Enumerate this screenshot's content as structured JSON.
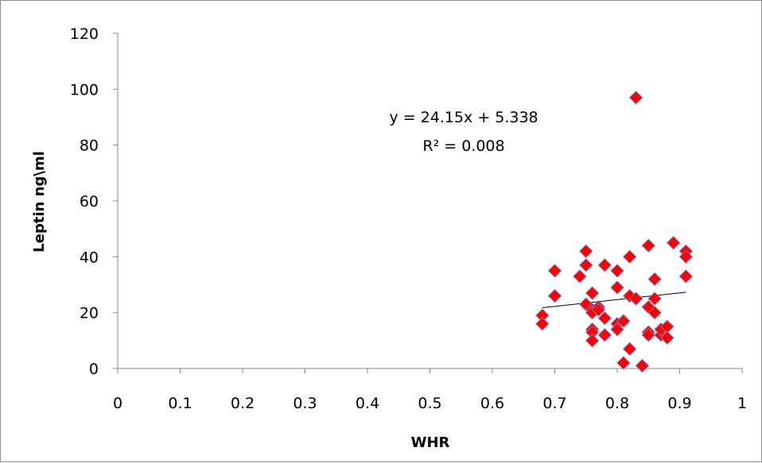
{
  "chart_data": {
    "type": "scatter",
    "xlabel": "WHR",
    "ylabel": "Leptin ng\\ml",
    "xlim": [
      0,
      1
    ],
    "ylim": [
      0,
      120
    ],
    "xticks": [
      "0",
      "0.1",
      "0.2",
      "0.3",
      "0.4",
      "0.5",
      "0.6",
      "0.7",
      "0.8",
      "0.9",
      "1"
    ],
    "yticks": [
      "0",
      "20",
      "40",
      "60",
      "80",
      "100",
      "120"
    ],
    "grid": false,
    "legend": "none",
    "marker": "diamond",
    "marker_color": "#ff0000",
    "marker_edge_color": "#7a7ab8",
    "series": [
      {
        "points": [
          [
            0.68,
            19
          ],
          [
            0.68,
            16
          ],
          [
            0.7,
            35
          ],
          [
            0.7,
            26
          ],
          [
            0.74,
            33
          ],
          [
            0.75,
            42
          ],
          [
            0.75,
            37
          ],
          [
            0.75,
            23
          ],
          [
            0.76,
            27
          ],
          [
            0.76,
            21
          ],
          [
            0.76,
            20
          ],
          [
            0.76,
            14
          ],
          [
            0.76,
            13
          ],
          [
            0.76,
            10
          ],
          [
            0.77,
            22
          ],
          [
            0.77,
            21
          ],
          [
            0.78,
            37
          ],
          [
            0.78,
            18
          ],
          [
            0.78,
            12
          ],
          [
            0.8,
            35
          ],
          [
            0.8,
            29
          ],
          [
            0.8,
            16
          ],
          [
            0.8,
            14
          ],
          [
            0.81,
            17
          ],
          [
            0.81,
            2
          ],
          [
            0.82,
            40
          ],
          [
            0.82,
            26
          ],
          [
            0.82,
            7
          ],
          [
            0.83,
            97
          ],
          [
            0.83,
            25
          ],
          [
            0.84,
            1
          ],
          [
            0.85,
            44
          ],
          [
            0.85,
            22
          ],
          [
            0.85,
            13
          ],
          [
            0.85,
            12
          ],
          [
            0.86,
            32
          ],
          [
            0.86,
            25
          ],
          [
            0.86,
            20
          ],
          [
            0.87,
            12
          ],
          [
            0.87,
            14
          ],
          [
            0.88,
            15
          ],
          [
            0.88,
            11
          ],
          [
            0.89,
            45
          ],
          [
            0.91,
            42
          ],
          [
            0.91,
            40
          ],
          [
            0.91,
            33
          ]
        ]
      }
    ],
    "trendline": {
      "slope": 24.15,
      "intercept": 5.338,
      "x_range": [
        0.68,
        0.91
      ],
      "color": "#000000"
    },
    "annotations": [
      "y = 24.15x + 5.338",
      "R² = 0.008"
    ]
  }
}
